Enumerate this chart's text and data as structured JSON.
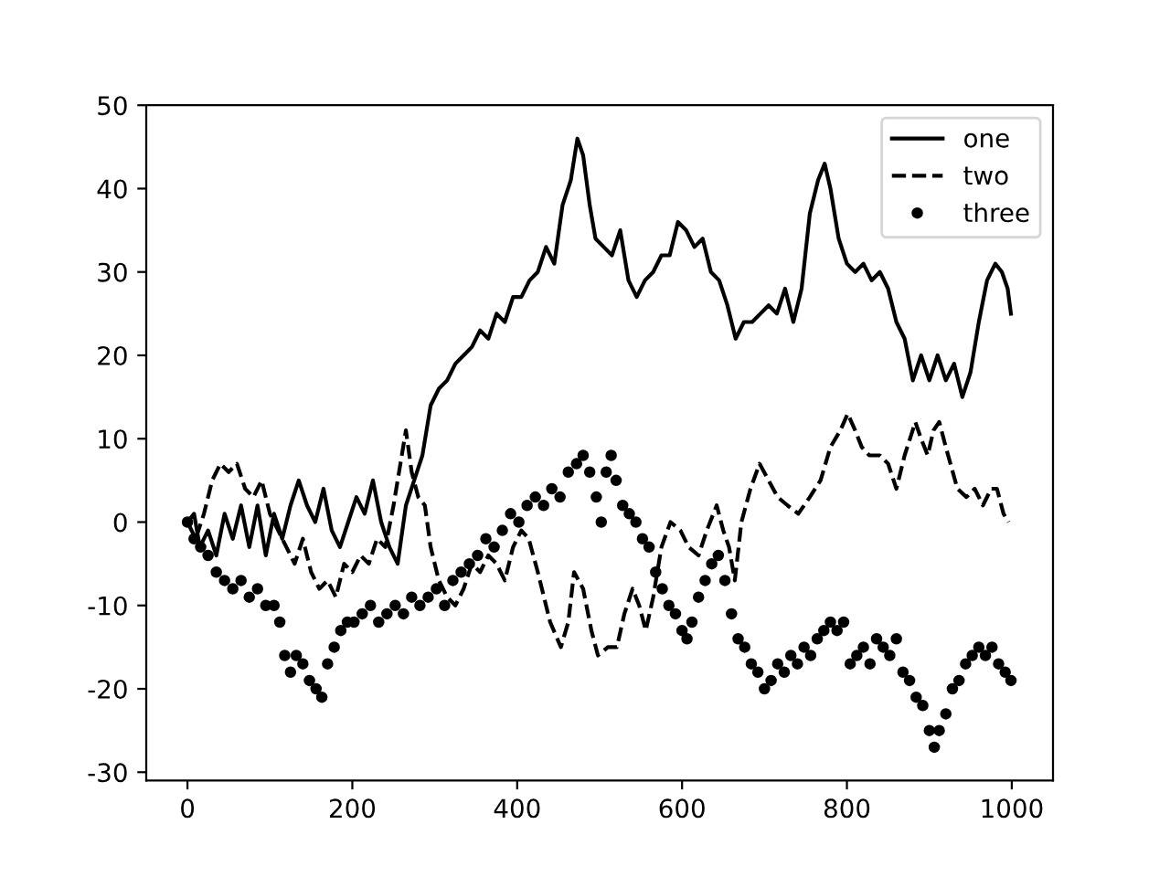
{
  "chart_data": {
    "type": "line",
    "xlim": [
      -50,
      1050
    ],
    "ylim": [
      -31,
      50
    ],
    "xticks": [
      0,
      200,
      400,
      600,
      800,
      1000
    ],
    "yticks": [
      -30,
      -20,
      -10,
      0,
      10,
      20,
      30,
      40,
      50
    ],
    "grid": false,
    "legend": "top right",
    "series": [
      {
        "name": "one",
        "line_style": "solid",
        "marker": "none",
        "color": "#000000",
        "x": [
          0,
          8,
          15,
          25,
          35,
          45,
          55,
          65,
          75,
          85,
          95,
          105,
          115,
          125,
          135,
          145,
          155,
          165,
          175,
          185,
          195,
          205,
          215,
          225,
          235,
          245,
          255,
          265,
          275,
          285,
          295,
          305,
          315,
          325,
          335,
          345,
          355,
          365,
          375,
          385,
          395,
          405,
          415,
          425,
          435,
          445,
          455,
          465,
          473,
          480,
          488,
          495,
          505,
          515,
          525,
          535,
          545,
          555,
          565,
          575,
          585,
          595,
          605,
          615,
          625,
          635,
          645,
          655,
          665,
          675,
          685,
          695,
          705,
          715,
          725,
          735,
          745,
          755,
          765,
          773,
          780,
          790,
          800,
          810,
          820,
          830,
          840,
          850,
          860,
          870,
          880,
          890,
          900,
          910,
          920,
          930,
          940,
          950,
          960,
          970,
          980,
          988,
          995,
          999
        ],
        "values": [
          0,
          1,
          -3,
          -1,
          -4,
          1,
          -2,
          2,
          -3,
          2,
          -4,
          1,
          -2,
          2,
          5,
          2,
          0,
          4,
          -1,
          -3,
          0,
          3,
          1,
          5,
          0,
          -3,
          -5,
          2,
          5,
          8,
          14,
          16,
          17,
          19,
          20,
          21,
          23,
          22,
          25,
          24,
          27,
          27,
          29,
          30,
          33,
          31,
          38,
          41,
          46,
          44,
          38,
          34,
          33,
          32,
          35,
          29,
          27,
          29,
          30,
          32,
          32,
          36,
          35,
          33,
          34,
          30,
          29,
          26,
          22,
          24,
          24,
          25,
          26,
          25,
          28,
          24,
          28,
          37,
          41,
          43,
          40,
          34,
          31,
          30,
          31,
          29,
          30,
          28,
          24,
          22,
          17,
          20,
          17,
          20,
          17,
          19,
          15,
          18,
          24,
          29,
          31,
          30,
          28,
          25
        ]
      },
      {
        "name": "two",
        "line_style": "dashed",
        "marker": "none",
        "color": "#000000",
        "x": [
          0,
          10,
          20,
          30,
          40,
          50,
          60,
          70,
          80,
          90,
          100,
          110,
          120,
          130,
          140,
          150,
          160,
          170,
          180,
          190,
          200,
          210,
          220,
          230,
          240,
          250,
          260,
          265,
          272,
          280,
          288,
          295,
          305,
          315,
          325,
          335,
          345,
          355,
          365,
          375,
          385,
          395,
          405,
          414,
          425,
          440,
          453,
          462,
          469,
          480,
          490,
          498,
          510,
          521,
          530,
          540,
          548,
          556,
          565,
          575,
          586,
          598,
          608,
          620,
          630,
          642,
          650,
          657,
          664,
          672,
          683,
          694,
          705,
          716,
          728,
          741,
          755,
          768,
          780,
          792,
          801,
          810,
          818,
          827,
          840,
          850,
          860,
          870,
          883,
          890,
          898,
          905,
          912,
          920,
          934,
          945,
          955,
          965,
          975,
          982,
          990,
          996
        ],
        "values": [
          0,
          -2,
          1,
          5,
          7,
          6,
          7,
          4,
          3,
          5,
          1,
          -1,
          -3,
          -5,
          -2,
          -6,
          -8,
          -7,
          -9,
          -5,
          -6,
          -4,
          -5,
          -2,
          -3,
          2,
          8,
          11,
          6,
          3,
          2,
          -3,
          -7,
          -9,
          -10,
          -8,
          -5,
          -6,
          -4,
          -5,
          -7,
          -3,
          -1,
          -2,
          -6,
          -12,
          -15,
          -12,
          -6,
          -8,
          -13,
          -16,
          -15,
          -15,
          -11,
          -8,
          -10,
          -13,
          -9,
          -3,
          0,
          -1,
          -3,
          -4,
          -1,
          2,
          -1,
          -3,
          -7,
          0,
          4,
          7,
          5,
          3,
          2,
          1,
          3,
          5,
          9,
          11,
          13,
          11,
          9,
          8,
          8,
          7,
          4,
          8,
          12,
          10,
          8,
          11,
          12,
          9,
          4,
          3,
          4,
          2,
          4,
          4,
          1,
          0
        ]
      },
      {
        "name": "three",
        "type": "scatter",
        "line_style": "none",
        "marker": "circle",
        "color": "#000000",
        "x": [
          0,
          8,
          16,
          25,
          35,
          45,
          55,
          65,
          75,
          85,
          95,
          105,
          112,
          118,
          125,
          132,
          140,
          148,
          156,
          163,
          170,
          178,
          186,
          194,
          202,
          212,
          222,
          232,
          242,
          252,
          262,
          272,
          282,
          292,
          302,
          312,
          322,
          332,
          342,
          352,
          362,
          372,
          382,
          392,
          402,
          412,
          422,
          432,
          442,
          452,
          462,
          472,
          480,
          488,
          496,
          502,
          508,
          514,
          520,
          528,
          536,
          544,
          552,
          560,
          568,
          576,
          584,
          592,
          600,
          606,
          612,
          620,
          628,
          636,
          644,
          652,
          660,
          668,
          676,
          684,
          692,
          700,
          708,
          716,
          724,
          732,
          740,
          748,
          756,
          764,
          772,
          780,
          788,
          796,
          804,
          812,
          820,
          828,
          836,
          844,
          852,
          860,
          868,
          876,
          884,
          892,
          900,
          906,
          912,
          920,
          928,
          936,
          944,
          952,
          960,
          968,
          976,
          984,
          992,
          999
        ],
        "values": [
          0,
          -2,
          -3,
          -4,
          -6,
          -7,
          -8,
          -7,
          -9,
          -8,
          -10,
          -10,
          -12,
          -16,
          -18,
          -16,
          -17,
          -19,
          -20,
          -21,
          -17,
          -15,
          -13,
          -12,
          -12,
          -11,
          -10,
          -12,
          -11,
          -10,
          -11,
          -9,
          -10,
          -9,
          -8,
          -10,
          -7,
          -6,
          -5,
          -4,
          -2,
          -3,
          -1,
          1,
          0,
          2,
          3,
          2,
          4,
          3,
          6,
          7,
          8,
          6,
          3,
          0,
          6,
          8,
          5,
          2,
          1,
          0,
          -2,
          -3,
          -6,
          -8,
          -10,
          -11,
          -13,
          -14,
          -12,
          -9,
          -7,
          -5,
          -4,
          -7,
          -11,
          -14,
          -15,
          -17,
          -18,
          -20,
          -19,
          -17,
          -18,
          -16,
          -17,
          -15,
          -16,
          -14,
          -13,
          -12,
          -13,
          -12,
          -17,
          -16,
          -15,
          -17,
          -14,
          -15,
          -16,
          -14,
          -18,
          -19,
          -21,
          -22,
          -25,
          -27,
          -25,
          -23,
          -20,
          -19,
          -17,
          -16,
          -15,
          -16,
          -15,
          -17,
          -18,
          -19
        ]
      }
    ]
  }
}
